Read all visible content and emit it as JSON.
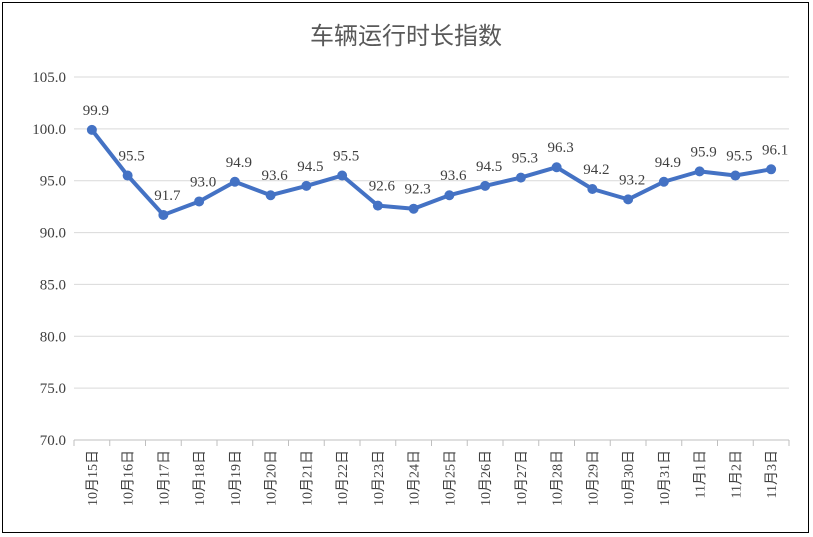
{
  "chart_data": {
    "type": "line",
    "title": "车辆运行时长指数",
    "categories": [
      "10月15日",
      "10月16日",
      "10月17日",
      "10月18日",
      "10月19日",
      "10月20日",
      "10月21日",
      "10月22日",
      "10月23日",
      "10月24日",
      "10月25日",
      "10月26日",
      "10月27日",
      "10月28日",
      "10月29日",
      "10月30日",
      "10月31日",
      "11月1日",
      "11月2日",
      "11月3日"
    ],
    "values": [
      99.9,
      95.5,
      91.7,
      93.0,
      94.9,
      93.6,
      94.5,
      95.5,
      92.6,
      92.3,
      93.6,
      94.5,
      95.3,
      96.3,
      94.2,
      93.2,
      94.9,
      95.9,
      95.5,
      96.1
    ],
    "value_labels": [
      "99.9",
      "95.5",
      "91.7",
      "93.0",
      "94.9",
      "93.6",
      "94.5",
      "95.5",
      "92.6",
      "92.3",
      "93.6",
      "94.5",
      "95.3",
      "96.3",
      "94.2",
      "93.2",
      "94.9",
      "95.9",
      "95.5",
      "96.1"
    ],
    "ylim": [
      70.0,
      105.0
    ],
    "yticks": [
      "70.0",
      "75.0",
      "80.0",
      "85.0",
      "90.0",
      "95.0",
      "100.0",
      "105.0"
    ],
    "grid": true,
    "colors": {
      "line": "#4472C4",
      "grid": "#D9D9D9",
      "axis": "#BFBFBF",
      "text": "#404040",
      "title": "#595959"
    }
  }
}
